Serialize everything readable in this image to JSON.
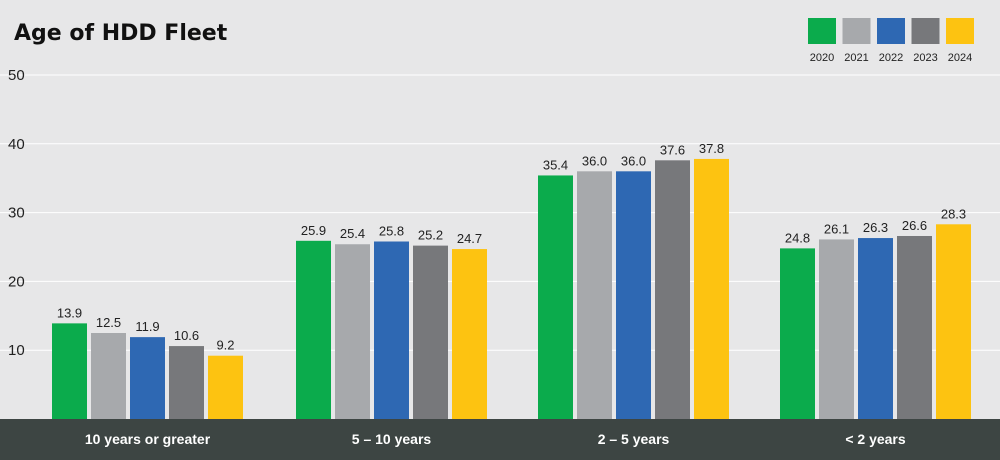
{
  "chart_data": {
    "type": "bar",
    "title": "Age of HDD Fleet",
    "xlabel": "",
    "ylabel": "",
    "ylim": [
      0,
      50
    ],
    "yticks": [
      10,
      20,
      30,
      40,
      50
    ],
    "grid": true,
    "legend_position": "top-right",
    "categories": [
      "10 years or greater",
      "5 – 10 years",
      "2 – 5 years",
      "< 2 years"
    ],
    "series": [
      {
        "name": "2020",
        "color": "#0bab4c",
        "values": [
          13.9,
          25.9,
          35.4,
          24.8
        ]
      },
      {
        "name": "2021",
        "color": "#a7a9ac",
        "values": [
          12.5,
          25.4,
          36.0,
          26.1
        ]
      },
      {
        "name": "2022",
        "color": "#2e68b3",
        "values": [
          11.9,
          25.8,
          36.0,
          26.3
        ]
      },
      {
        "name": "2023",
        "color": "#77787b",
        "values": [
          10.6,
          25.2,
          37.6,
          26.6
        ]
      },
      {
        "name": "2024",
        "color": "#fdc311",
        "values": [
          9.2,
          24.7,
          37.8,
          28.3
        ]
      }
    ],
    "value_labels": [
      [
        "13.9",
        "25.9",
        "35.4",
        "24.8"
      ],
      [
        "12.5",
        "25.4",
        "36.0",
        "26.1"
      ],
      [
        "11.9",
        "25.8",
        "36.0",
        "26.3"
      ],
      [
        "10.6",
        "25.2",
        "37.6",
        "26.6"
      ],
      [
        "9.2",
        "24.7",
        "37.8",
        "28.3"
      ]
    ]
  },
  "colors": {
    "background": "#e7e7e8",
    "category_bar": "#3d4543",
    "gridline": "#ffffff"
  }
}
